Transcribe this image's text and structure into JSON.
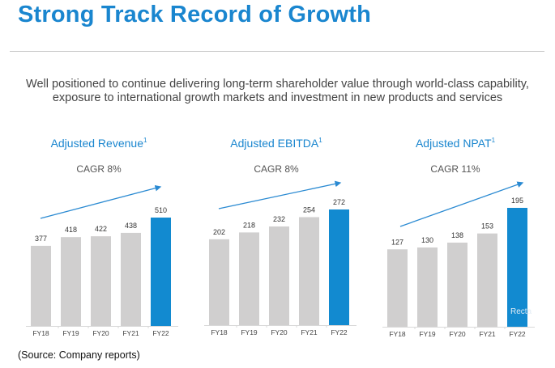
{
  "title": "Strong Track Record of Growth",
  "subtitle_lines": [
    "Well positioned to continue delivering long-term shareholder value through world-class capability,",
    "exposure to international growth markets and investment in new products and services"
  ],
  "source": "(Source: Company reports)",
  "watermark": "Recta",
  "colors": {
    "accent": "#1a86cf",
    "bar_grey": "#d0cfcf",
    "bar_highlight": "#128ad0",
    "arrow": "#2a8ad2"
  },
  "chart_data": [
    {
      "type": "bar",
      "title": "Adjusted Revenue",
      "footnote": "1",
      "subtitle": "CAGR 8%",
      "categories": [
        "FY18",
        "FY19",
        "FY20",
        "FY21",
        "FY22"
      ],
      "values": [
        377,
        418,
        422,
        438,
        510
      ],
      "highlight_index": 4,
      "ylim": [
        0,
        510
      ]
    },
    {
      "type": "bar",
      "title": "Adjusted EBITDA",
      "footnote": "1",
      "subtitle": "CAGR 8%",
      "categories": [
        "FY18",
        "FY19",
        "FY20",
        "FY21",
        "FY22"
      ],
      "values": [
        202,
        218,
        232,
        254,
        272
      ],
      "highlight_index": 4,
      "ylim": [
        0,
        272
      ]
    },
    {
      "type": "bar",
      "title": "Adjusted NPAT",
      "footnote": "1",
      "subtitle": "CAGR 11%",
      "categories": [
        "FY18",
        "FY19",
        "FY20",
        "FY21",
        "FY22"
      ],
      "values": [
        127,
        130,
        138,
        153,
        195
      ],
      "highlight_index": 4,
      "ylim": [
        0,
        195
      ]
    }
  ]
}
